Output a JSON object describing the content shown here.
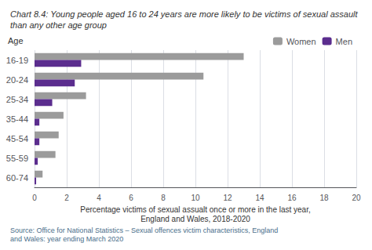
{
  "chart_data": {
    "type": "bar",
    "orientation": "horizontal",
    "title": "Chart 8.4: Young people aged 16 to 24 years are more likely to be victims of sexual assault than any other age group",
    "categories": [
      "16-19",
      "20-24",
      "25-34",
      "35-44",
      "45-54",
      "55-59",
      "60-74"
    ],
    "series": [
      {
        "name": "Women",
        "color": "#9b9b9b",
        "values": [
          13.0,
          10.5,
          3.2,
          1.8,
          1.5,
          1.3,
          0.5
        ]
      },
      {
        "name": "Men",
        "color": "#5b2d8e",
        "values": [
          2.9,
          2.5,
          1.1,
          0.3,
          0.3,
          0.2,
          0.1
        ]
      }
    ],
    "xlabel": "Percentage victims of sexual assualt once or more in the last year,\nEngland and Wales, 2018-2020",
    "ylabel": "Age",
    "xlim": [
      0,
      20
    ],
    "xticks": [
      0,
      2,
      4,
      6,
      8,
      10,
      12,
      14,
      16,
      18,
      20
    ],
    "grid": true,
    "legend": "upper right",
    "annotations": [
      "Source: Office for National Statistics – Sexual offences victim characteristics, England and Wales: year ending March 2020"
    ]
  }
}
